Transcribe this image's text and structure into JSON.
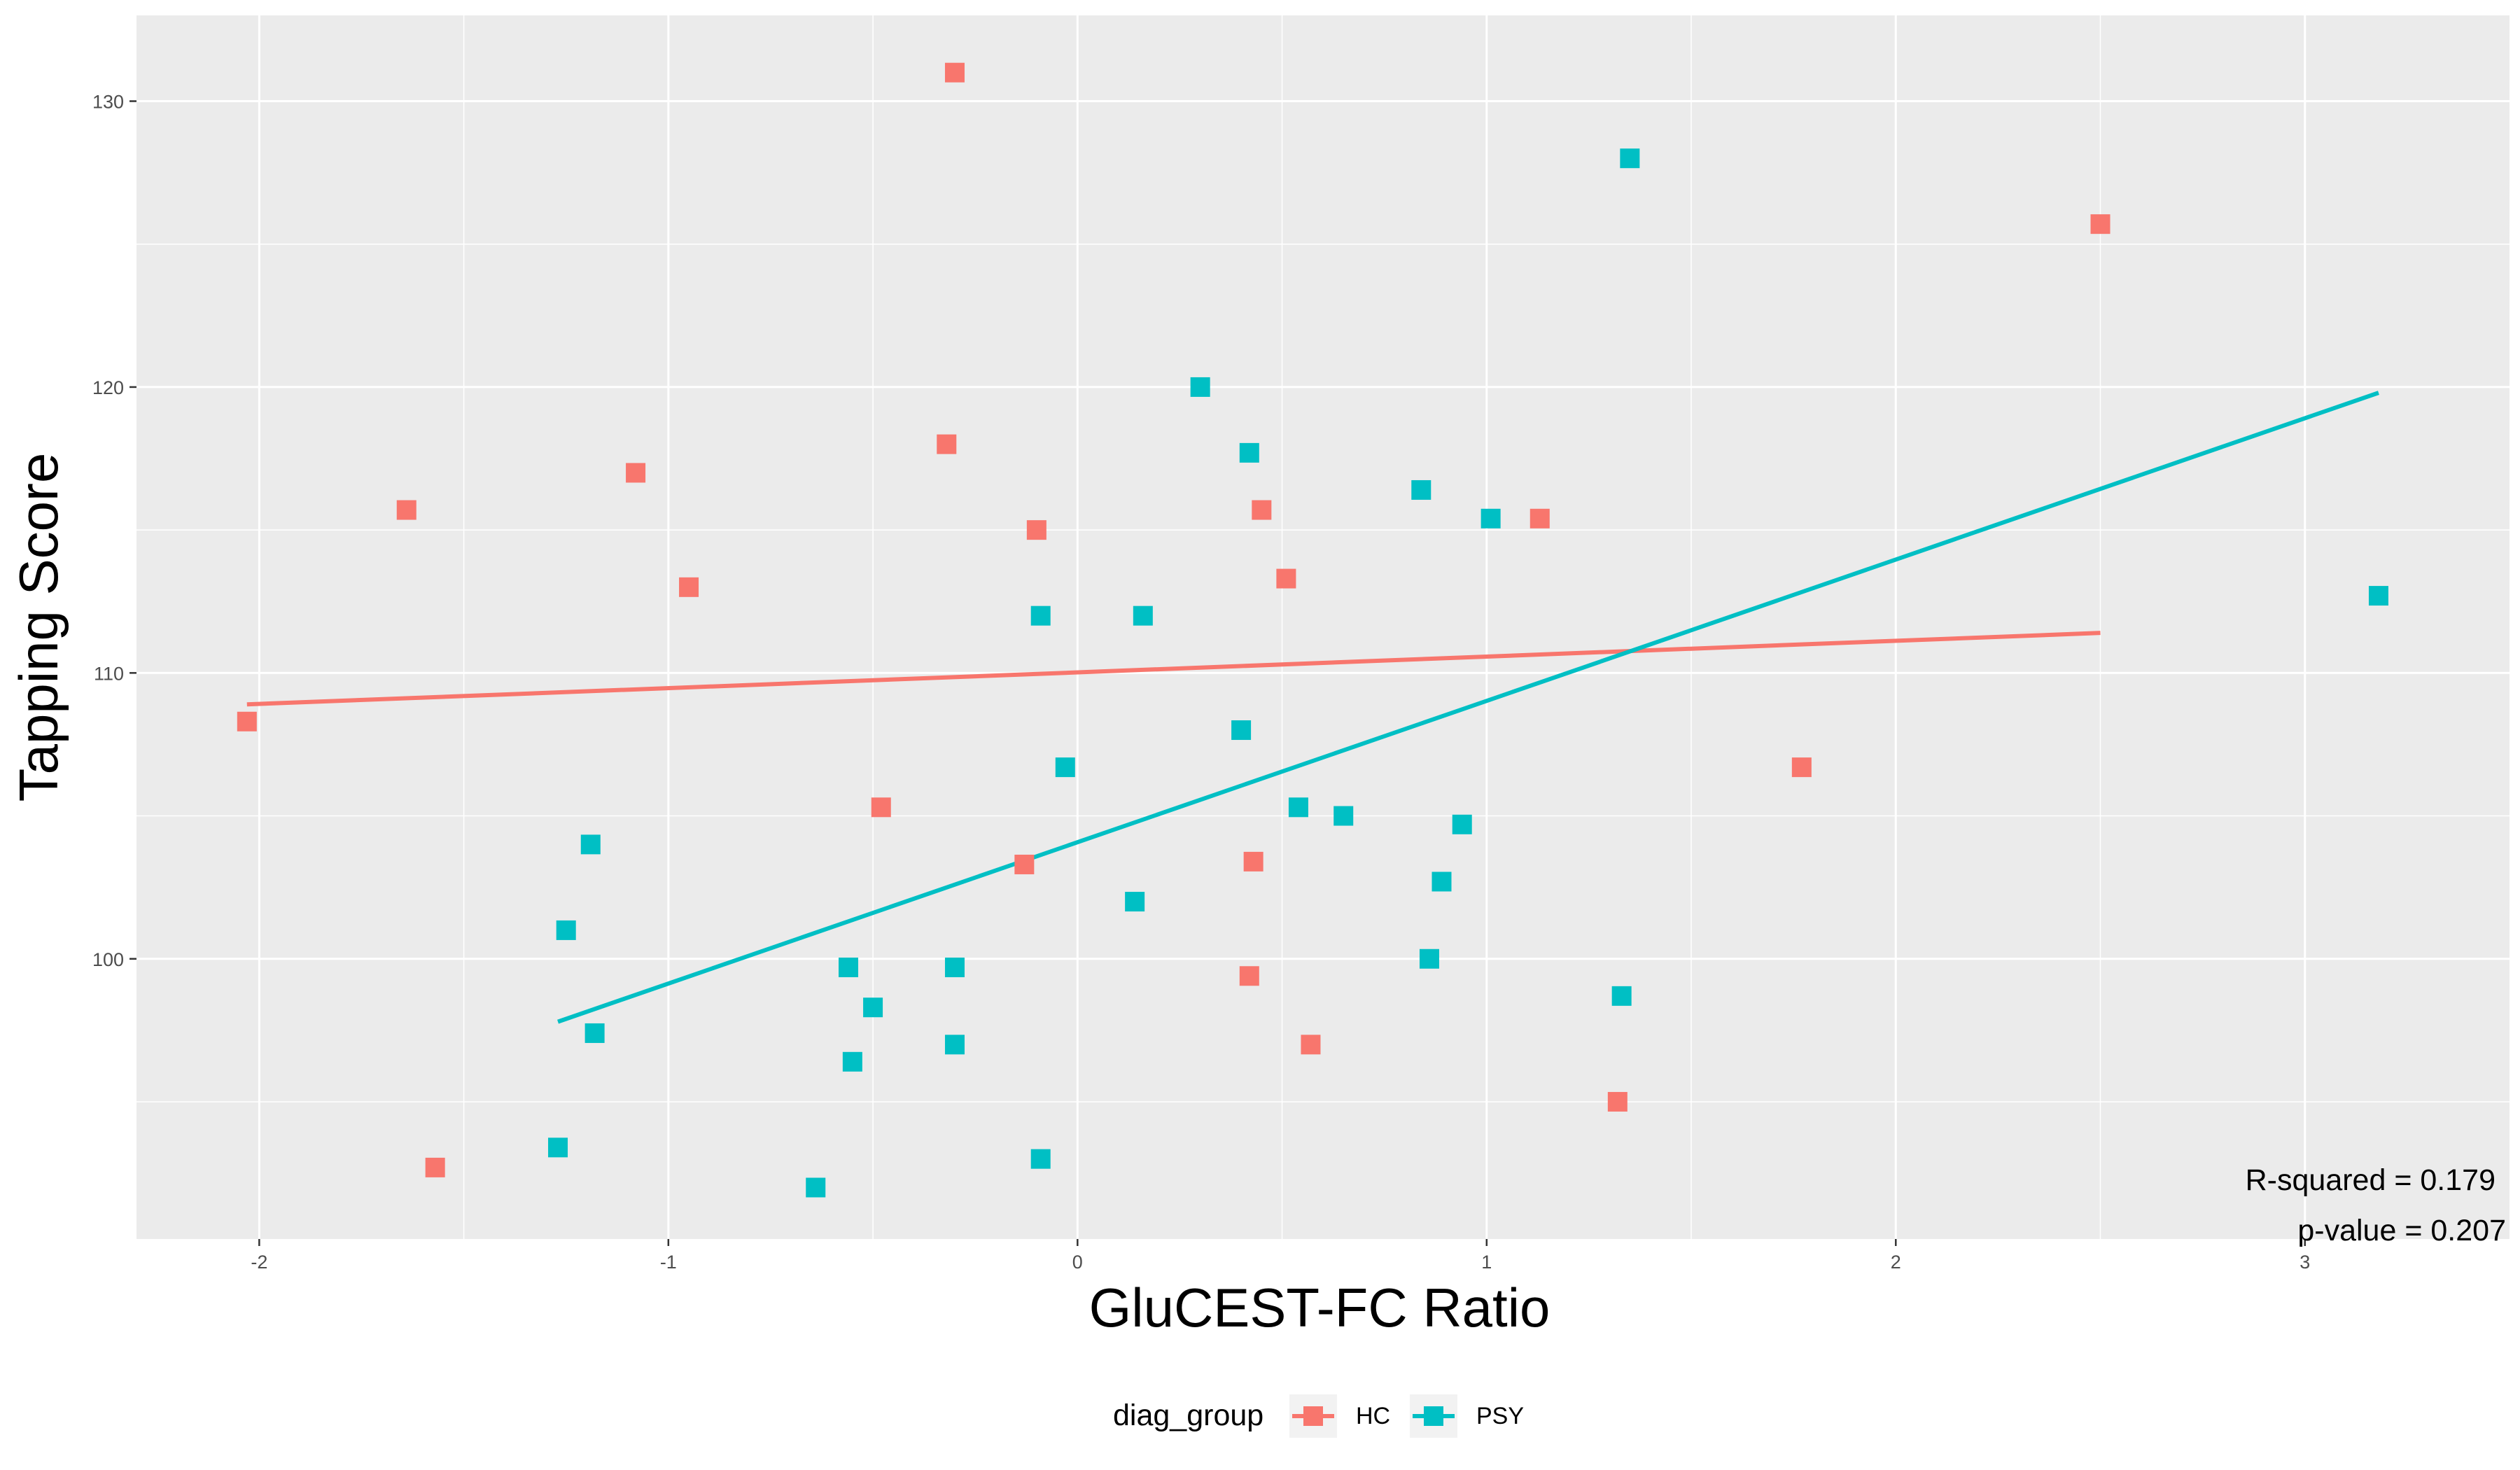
{
  "chart_data": {
    "type": "scatter",
    "xlabel": "GluCEST-FC Ratio",
    "ylabel": "Tapping Score",
    "xlim": [
      -2.3,
      3.5
    ],
    "ylim": [
      90.2,
      133.0
    ],
    "x_ticks": [
      -2,
      -1,
      0,
      1,
      2,
      3
    ],
    "x_tick_labels": [
      "-2",
      "-1",
      "0",
      "1",
      "2",
      "3"
    ],
    "y_ticks": [
      100,
      110,
      120,
      130
    ],
    "y_tick_labels": [
      "100",
      "110",
      "120",
      "130"
    ],
    "grid": true,
    "legend": {
      "title": "diag_group",
      "position": "bottom",
      "entries": [
        "HC",
        "PSY"
      ]
    },
    "annotations": [
      "R-squared = 0.179",
      "p-value = 0.207"
    ],
    "series": [
      {
        "name": "HC",
        "color": "#F8766D",
        "points": [
          [
            -2.03,
            108.3
          ],
          [
            -1.64,
            115.7
          ],
          [
            -1.57,
            92.7
          ],
          [
            -1.08,
            117.0
          ],
          [
            -0.95,
            113.0
          ],
          [
            -0.48,
            105.3
          ],
          [
            -0.32,
            118.0
          ],
          [
            -0.3,
            131.0
          ],
          [
            -0.13,
            103.3
          ],
          [
            -0.1,
            115.0
          ],
          [
            0.42,
            99.4
          ],
          [
            0.43,
            103.4
          ],
          [
            0.45,
            115.7
          ],
          [
            0.51,
            113.3
          ],
          [
            0.57,
            97.0
          ],
          [
            1.13,
            115.4
          ],
          [
            1.32,
            95.0
          ],
          [
            1.77,
            106.7
          ],
          [
            2.5,
            125.7
          ]
        ],
        "fit": [
          [
            -2.03,
            108.9
          ],
          [
            2.5,
            111.4
          ]
        ]
      },
      {
        "name": "PSY",
        "color": "#00BFC4",
        "points": [
          [
            -1.27,
            93.4
          ],
          [
            -1.25,
            101.0
          ],
          [
            -1.19,
            104.0
          ],
          [
            -1.18,
            97.4
          ],
          [
            -0.64,
            92.0
          ],
          [
            -0.56,
            99.7
          ],
          [
            -0.55,
            96.4
          ],
          [
            -0.5,
            98.3
          ],
          [
            -0.3,
            97.0
          ],
          [
            -0.3,
            99.7
          ],
          [
            -0.09,
            93.0
          ],
          [
            -0.09,
            112.0
          ],
          [
            -0.03,
            106.7
          ],
          [
            0.14,
            102.0
          ],
          [
            0.16,
            112.0
          ],
          [
            0.3,
            120.0
          ],
          [
            0.4,
            108.0
          ],
          [
            0.42,
            117.7
          ],
          [
            0.54,
            105.3
          ],
          [
            0.65,
            105.0
          ],
          [
            0.84,
            116.4
          ],
          [
            0.86,
            100.0
          ],
          [
            0.89,
            102.7
          ],
          [
            0.94,
            104.7
          ],
          [
            1.01,
            115.4
          ],
          [
            1.33,
            98.7
          ],
          [
            1.35,
            128.0
          ],
          [
            3.18,
            112.7
          ]
        ],
        "fit": [
          [
            -1.27,
            97.8
          ],
          [
            3.18,
            119.8
          ]
        ]
      }
    ]
  }
}
